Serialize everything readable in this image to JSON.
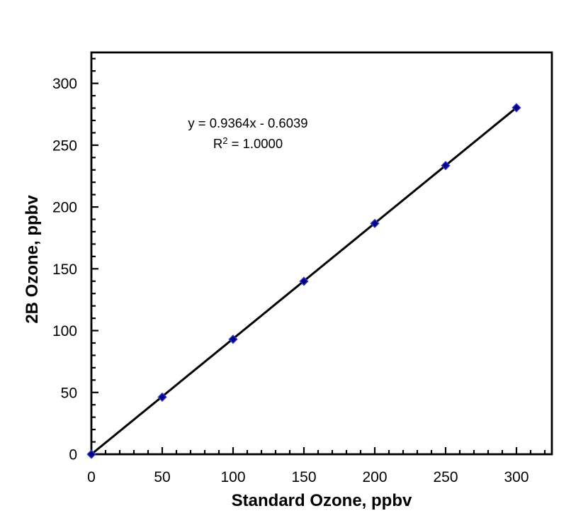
{
  "chart_data": {
    "type": "scatter",
    "title": "",
    "xlabel": "Standard Ozone, ppbv",
    "ylabel": "2B Ozone, ppbv",
    "x": [
      0,
      50,
      100,
      150,
      200,
      250,
      300
    ],
    "y": [
      0,
      46.2,
      93.0,
      139.9,
      186.7,
      233.5,
      280.3
    ],
    "xlim": [
      0,
      325
    ],
    "ylim": [
      0,
      325
    ],
    "x_major_ticks": [
      0,
      50,
      100,
      150,
      200,
      250,
      300
    ],
    "y_major_ticks": [
      0,
      50,
      100,
      150,
      200,
      250,
      300
    ],
    "minor_tick_step": 10,
    "grid": false,
    "legend": false,
    "trendline": {
      "slope": 0.9364,
      "intercept": -0.6039,
      "r_squared": 1.0,
      "equation": "y = 0.9364x - 0.6039",
      "r2_prefix": "R",
      "r2_sup": "2",
      "r2_suffix": " = 1.0000",
      "color": "#000000"
    },
    "marker": {
      "shape": "diamond",
      "fill": "#000080",
      "edge": "#3333CC"
    },
    "axis_color": "#000000",
    "background": "#FFFFFF"
  }
}
